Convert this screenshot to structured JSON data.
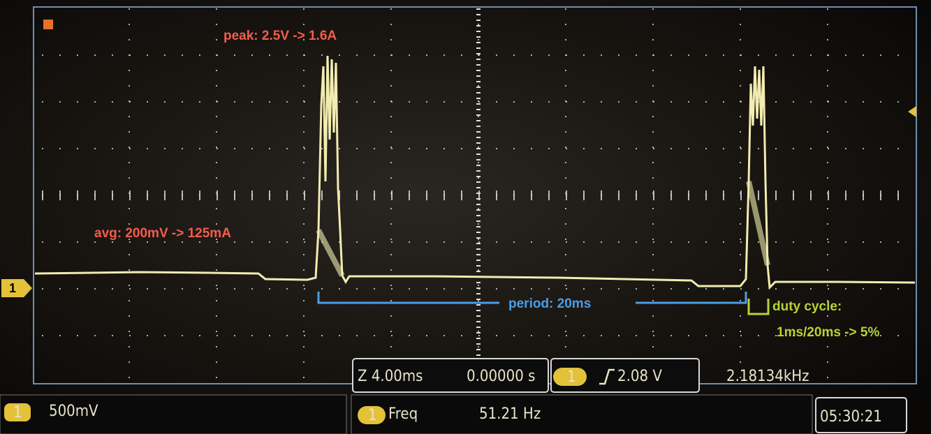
{
  "annotations": {
    "peak": "peak: 2.5V -> 1.6A",
    "avg": "avg: 200mV -> 125mA",
    "period": "period: 20ms",
    "duty_cycle": [
      "duty cycle:",
      "1ms/20ms -> 5%"
    ]
  },
  "channel_marker": "1",
  "status": {
    "timebase": "Z 4.00ms",
    "delay": "0.00000 s",
    "trigger_channel": "1",
    "trigger_level": "2.08 V",
    "trigger_freq": "2.18134kHz",
    "scale_channel": "1",
    "scale": "500mV",
    "measure_channel": "1",
    "measure_name": "Freq",
    "measure_value": "51.21 Hz",
    "time": "05:30:21"
  }
}
